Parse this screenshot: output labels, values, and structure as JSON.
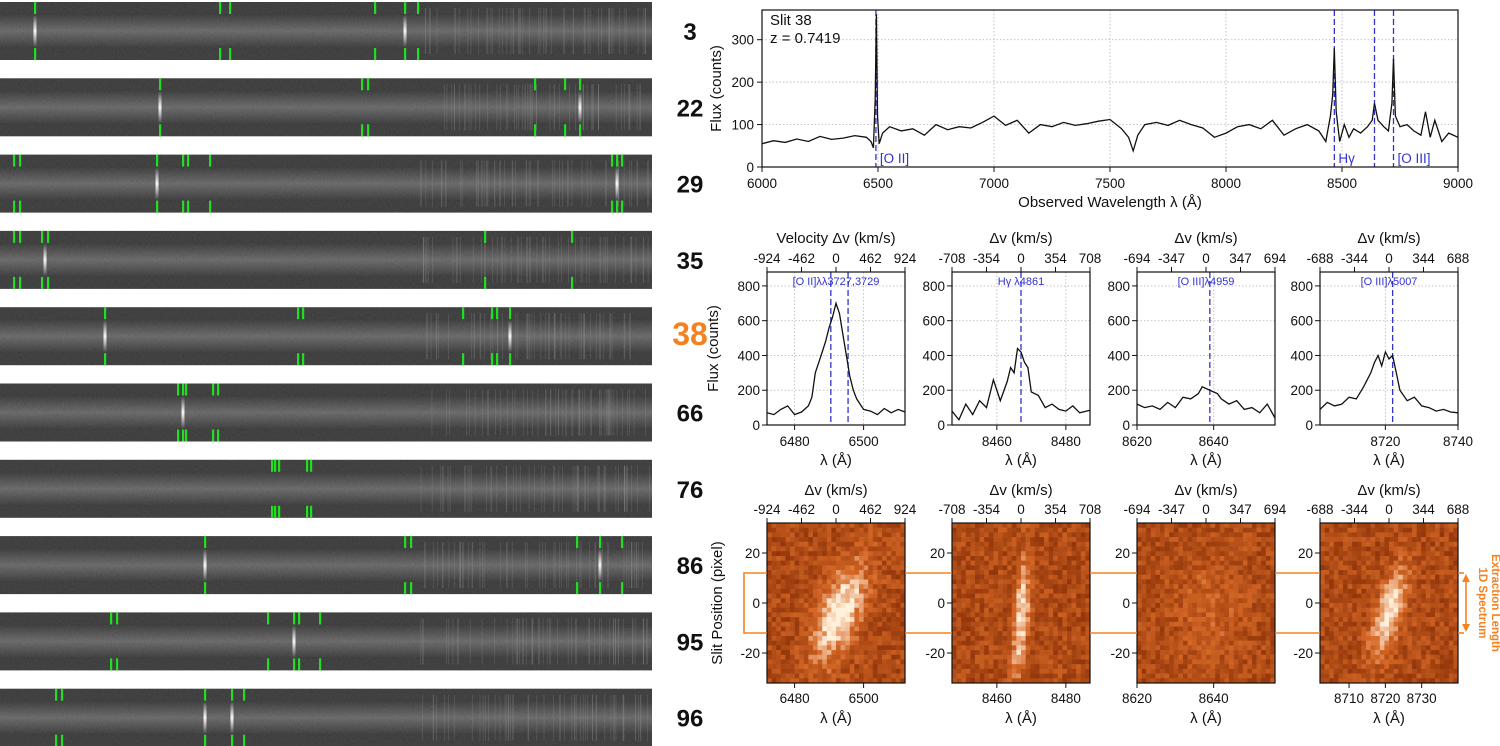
{
  "colors": {
    "strip_bg": "#2e2e2e",
    "marker": "#22dd22",
    "highlight": "#f58220",
    "emission_line": "#3333cc",
    "heat_dark": "#7a2400",
    "heat_bright": "#fff1dc"
  },
  "slit_strips": [
    {
      "label": "3",
      "highlight": false,
      "markers": [
        35,
        220,
        230,
        375,
        405,
        418
      ],
      "emission": [
        35,
        405
      ]
    },
    {
      "label": "22",
      "highlight": false,
      "markers": [
        160,
        362,
        368,
        535,
        565,
        580
      ],
      "emission": [
        160,
        580
      ]
    },
    {
      "label": "29",
      "highlight": false,
      "markers": [
        14,
        20,
        157,
        183,
        188,
        210,
        612,
        617,
        622
      ],
      "emission": [
        157,
        617
      ]
    },
    {
      "label": "35",
      "highlight": false,
      "markers": [
        14,
        20,
        42,
        48,
        485,
        572
      ],
      "emission": [
        45
      ]
    },
    {
      "label": "38",
      "highlight": true,
      "markers": [
        105,
        298,
        303,
        463,
        492,
        497,
        510
      ],
      "emission": [
        105,
        510
      ]
    },
    {
      "label": "66",
      "highlight": false,
      "markers": [
        178,
        183,
        186,
        213,
        218
      ],
      "emission": [
        183
      ]
    },
    {
      "label": "76",
      "highlight": false,
      "markers": [
        272,
        275,
        279,
        307,
        311
      ],
      "emission": []
    },
    {
      "label": "86",
      "highlight": false,
      "markers": [
        205,
        405,
        411,
        577,
        600,
        622
      ],
      "emission": [
        205,
        600
      ]
    },
    {
      "label": "95",
      "highlight": false,
      "markers": [
        111,
        117,
        268,
        294,
        299,
        320
      ],
      "emission": [
        294
      ]
    },
    {
      "label": "96",
      "highlight": false,
      "markers": [
        56,
        62,
        205,
        232,
        244
      ],
      "emission": [
        205,
        232
      ]
    }
  ],
  "chart_data": [
    {
      "type": "line",
      "title": "Slit 38",
      "subtitle": "z = 0.7419",
      "xlabel": "Observed Wavelength λ (Å)",
      "ylabel": "Flux (counts)",
      "xlim": [
        6000,
        9000
      ],
      "ylim": [
        0,
        370
      ],
      "xticks": [
        6000,
        6500,
        7000,
        7500,
        8000,
        8500,
        9000
      ],
      "yticks": [
        0,
        100,
        200,
        300
      ],
      "grid": true,
      "lines": [
        {
          "x": 6491,
          "label": "[O II]"
        },
        {
          "x": 8467,
          "label": "Hγ"
        },
        {
          "x": 8640,
          "label": ""
        },
        {
          "x": 8722,
          "label": "[O III]"
        }
      ],
      "series": [
        {
          "name": "spectrum",
          "x": [
            6000,
            6050,
            6100,
            6150,
            6200,
            6250,
            6300,
            6350,
            6400,
            6450,
            6470,
            6480,
            6488,
            6493,
            6498,
            6505,
            6520,
            6550,
            6600,
            6650,
            6700,
            6750,
            6800,
            6850,
            6900,
            6950,
            7000,
            7050,
            7100,
            7150,
            7200,
            7250,
            7300,
            7350,
            7400,
            7450,
            7500,
            7550,
            7580,
            7600,
            7620,
            7650,
            7700,
            7750,
            7800,
            7850,
            7900,
            7950,
            8000,
            8050,
            8100,
            8150,
            8200,
            8250,
            8300,
            8350,
            8400,
            8430,
            8450,
            8460,
            8467,
            8475,
            8490,
            8510,
            8530,
            8550,
            8580,
            8610,
            8630,
            8640,
            8655,
            8680,
            8700,
            8715,
            8722,
            8730,
            8750,
            8780,
            8810,
            8840,
            8860,
            8880,
            8900,
            8930,
            8960,
            9000
          ],
          "values": [
            55,
            62,
            58,
            66,
            60,
            72,
            65,
            68,
            74,
            70,
            60,
            45,
            160,
            360,
            120,
            55,
            80,
            95,
            85,
            90,
            75,
            100,
            88,
            95,
            92,
            105,
            120,
            98,
            110,
            80,
            100,
            95,
            105,
            98,
            102,
            108,
            112,
            90,
            70,
            38,
            75,
            100,
            105,
            98,
            110,
            100,
            92,
            70,
            80,
            95,
            100,
            90,
            110,
            75,
            90,
            100,
            85,
            60,
            120,
            170,
            280,
            130,
            60,
            100,
            70,
            90,
            80,
            95,
            110,
            150,
            110,
            95,
            85,
            150,
            255,
            120,
            95,
            100,
            85,
            75,
            130,
            70,
            110,
            60,
            80,
            70
          ]
        }
      ]
    },
    {
      "type": "line",
      "title": "Velocity Δv (km/s)",
      "annotation": "[O II]λλ3727,3729",
      "xlabel": "λ (Å)",
      "ylabel": "Flux (counts)",
      "xlim": [
        6472,
        6512
      ],
      "ylim": [
        0,
        880
      ],
      "xticks": [
        6480,
        6500
      ],
      "yticks": [
        0,
        200,
        400,
        600,
        800
      ],
      "top_ticks": [
        "-924",
        "-462",
        "0",
        "462",
        "924"
      ],
      "lines": [
        6490.5,
        6495.5
      ],
      "grid": true,
      "series": [
        {
          "name": "flux",
          "x": [
            6472,
            6474,
            6476,
            6478,
            6480,
            6482,
            6484,
            6485,
            6486,
            6487,
            6488,
            6489,
            6490,
            6491,
            6492,
            6493,
            6494,
            6495,
            6496,
            6497,
            6498,
            6499,
            6500,
            6502,
            6504,
            6506,
            6508,
            6510,
            6512
          ],
          "values": [
            70,
            60,
            90,
            110,
            60,
            75,
            110,
            160,
            300,
            360,
            420,
            480,
            560,
            620,
            700,
            640,
            520,
            400,
            280,
            200,
            150,
            120,
            90,
            80,
            60,
            95,
            70,
            90,
            75
          ]
        }
      ]
    },
    {
      "type": "line",
      "title": "Δv (km/s)",
      "annotation": "Hγ λ4861",
      "xlabel": "λ (Å)",
      "ylabel": "",
      "xlim": [
        8447,
        8487
      ],
      "ylim": [
        0,
        880
      ],
      "xticks": [
        8460,
        8480
      ],
      "yticks": [
        0,
        200,
        400,
        600,
        800
      ],
      "top_ticks": [
        "-708",
        "-354",
        "0",
        "354",
        "708"
      ],
      "lines": [
        8467
      ],
      "grid": true,
      "series": [
        {
          "name": "flux",
          "x": [
            8447,
            8449,
            8451,
            8453,
            8455,
            8457,
            8459,
            8461,
            8463,
            8464,
            8465,
            8466,
            8467,
            8468,
            8469,
            8470,
            8472,
            8474,
            8476,
            8478,
            8480,
            8482,
            8484,
            8487
          ],
          "values": [
            80,
            30,
            120,
            60,
            140,
            100,
            260,
            140,
            250,
            330,
            300,
            440,
            420,
            360,
            330,
            190,
            170,
            100,
            120,
            90,
            80,
            110,
            70,
            85
          ]
        }
      ]
    },
    {
      "type": "line",
      "title": "Δv (km/s)",
      "annotation": "[O III]λ4959",
      "xlabel": "λ (Å)",
      "ylabel": "",
      "xlim": [
        8620,
        8656
      ],
      "ylim": [
        0,
        880
      ],
      "xticks": [
        8620,
        8640
      ],
      "yticks": [
        0,
        200,
        400,
        600,
        800
      ],
      "top_ticks": [
        "-694",
        "-347",
        "0",
        "347",
        "694"
      ],
      "lines": [
        8639
      ],
      "grid": true,
      "series": [
        {
          "name": "flux",
          "x": [
            8620,
            8622,
            8624,
            8626,
            8628,
            8630,
            8632,
            8634,
            8636,
            8637,
            8638,
            8639,
            8640,
            8641,
            8642,
            8644,
            8646,
            8648,
            8650,
            8652,
            8654,
            8656
          ],
          "values": [
            120,
            100,
            110,
            90,
            130,
            100,
            160,
            150,
            180,
            220,
            210,
            200,
            190,
            180,
            150,
            120,
            140,
            90,
            100,
            70,
            120,
            40
          ]
        }
      ]
    },
    {
      "type": "line",
      "title": "Δv (km/s)",
      "annotation": "[O III]λ5007",
      "xlabel": "λ (Å)",
      "ylabel": "",
      "xlim": [
        8702,
        8740
      ],
      "ylim": [
        0,
        880
      ],
      "xticks": [
        8720,
        8740
      ],
      "yticks": [
        0,
        200,
        400,
        600,
        800
      ],
      "top_ticks": [
        "-688",
        "-344",
        "0",
        "344",
        "688"
      ],
      "lines": [
        8722
      ],
      "grid": true,
      "series": [
        {
          "name": "flux",
          "x": [
            8702,
            8704,
            8706,
            8708,
            8710,
            8712,
            8714,
            8716,
            8717,
            8718,
            8719,
            8720,
            8721,
            8722,
            8723,
            8724,
            8726,
            8728,
            8730,
            8732,
            8734,
            8736,
            8738,
            8740
          ],
          "values": [
            90,
            130,
            110,
            120,
            160,
            150,
            220,
            300,
            360,
            400,
            340,
            420,
            380,
            400,
            300,
            200,
            140,
            160,
            110,
            100,
            80,
            90,
            75,
            70
          ]
        }
      ]
    },
    {
      "type": "heatmap",
      "title": "Δv (km/s)",
      "xlabel": "λ (Å)",
      "ylabel": "Slit Position (pixel)",
      "xlim": [
        6472,
        6512
      ],
      "ylim": [
        -32,
        32
      ],
      "xticks": [
        6480,
        6500
      ],
      "yticks": [
        -20,
        0,
        20
      ],
      "top_ticks": [
        "-924",
        "-462",
        "0",
        "462",
        "924"
      ],
      "blob": {
        "center_wavelength": 6493,
        "center_position": -4,
        "width_wavelength": 4.5,
        "width_position": 14,
        "tilt": 0.24,
        "amplitude": 1.0
      }
    },
    {
      "type": "heatmap",
      "title": "Δv (km/s)",
      "xlabel": "λ (Å)",
      "ylabel": "",
      "xlim": [
        8447,
        8487
      ],
      "ylim": [
        -32,
        32
      ],
      "xticks": [
        8460,
        8480
      ],
      "yticks": [
        -20,
        0,
        20
      ],
      "top_ticks": [
        "-708",
        "-354",
        "0",
        "354",
        "708"
      ],
      "blob": {
        "center_wavelength": 8467,
        "center_position": -6,
        "width_wavelength": 1.6,
        "width_position": 17,
        "tilt": 0.05,
        "amplitude": 0.9
      }
    },
    {
      "type": "heatmap",
      "title": "Δv (km/s)",
      "xlabel": "λ (Å)",
      "ylabel": "",
      "xlim": [
        8620,
        8656
      ],
      "ylim": [
        -32,
        32
      ],
      "xticks": [
        8620,
        8640
      ],
      "yticks": [
        -20,
        0,
        20
      ],
      "top_ticks": [
        "-694",
        "-347",
        "0",
        "347",
        "694"
      ],
      "blob": {
        "center_wavelength": 8639,
        "center_position": -3,
        "width_wavelength": 6,
        "width_position": 16,
        "tilt": 0.0,
        "amplitude": 0.25
      }
    },
    {
      "type": "heatmap",
      "title": "Δv (km/s)",
      "xlabel": "λ (Å)",
      "ylabel": "",
      "xlim": [
        8702,
        8740
      ],
      "ylim": [
        -32,
        32
      ],
      "xticks": [
        8710,
        8720,
        8730
      ],
      "yticks": [
        -20,
        0,
        20
      ],
      "top_ticks": [
        "-688",
        "-344",
        "0",
        "344",
        "688"
      ],
      "blob": {
        "center_wavelength": 8721,
        "center_position": -4,
        "width_wavelength": 2.6,
        "width_position": 12,
        "tilt": 0.18,
        "amplitude": 1.0
      }
    }
  ],
  "extraction_band": {
    "from": -12,
    "to": 12,
    "label_line1": "1D Spectrum",
    "label_line2": "Extraction Length"
  }
}
